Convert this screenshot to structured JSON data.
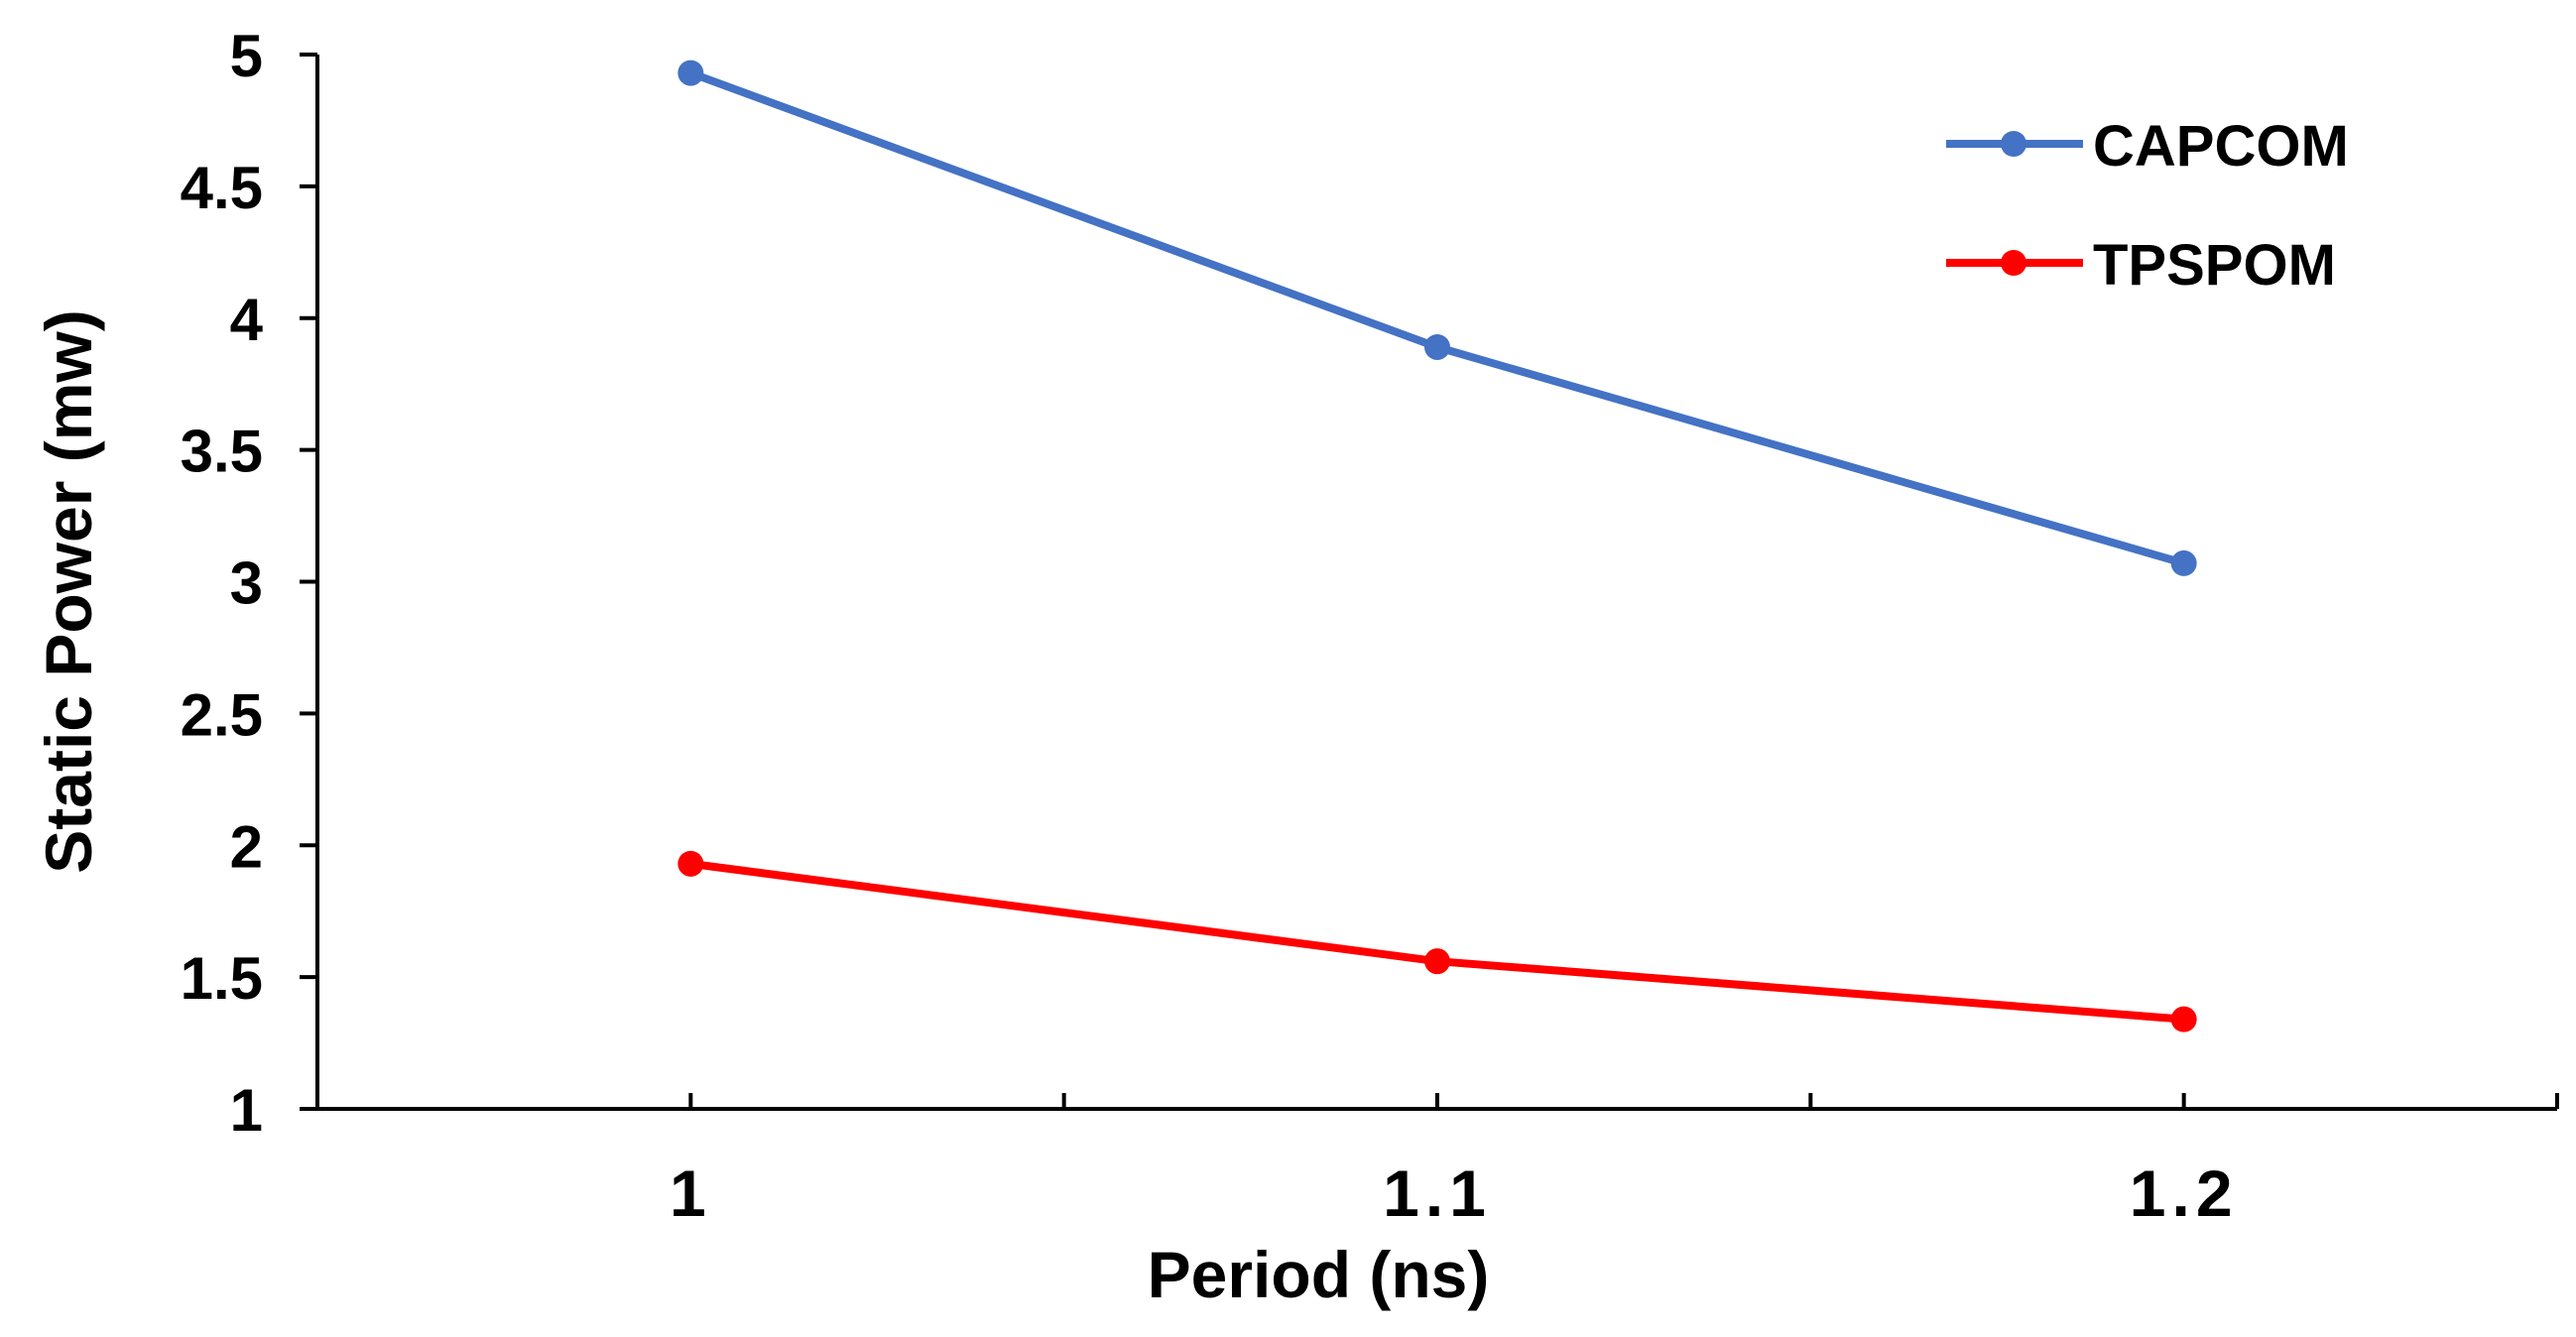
{
  "chart_data": {
    "type": "line",
    "title": "",
    "xlabel": "Period (ns)",
    "ylabel": "Static Power (mw)",
    "x": [
      1,
      1.1,
      1.2
    ],
    "x_tick_labels": [
      "1",
      "1.1",
      "1.2"
    ],
    "ylim": [
      1,
      5
    ],
    "y_ticks": [
      1,
      1.5,
      2,
      2.5,
      3,
      3.5,
      4,
      4.5,
      5
    ],
    "y_tick_labels": [
      "1",
      "1.5",
      "2",
      "2.5",
      "3",
      "3.5",
      "4",
      "4.5",
      "5"
    ],
    "grid": false,
    "legend_position": "top-right",
    "series": [
      {
        "name": "CAPCOM",
        "color": "#4472C4",
        "values": [
          4.93,
          3.89,
          3.07
        ]
      },
      {
        "name": "TPSPOM",
        "color": "#FF0000",
        "values": [
          1.93,
          1.56,
          1.34
        ]
      }
    ]
  }
}
